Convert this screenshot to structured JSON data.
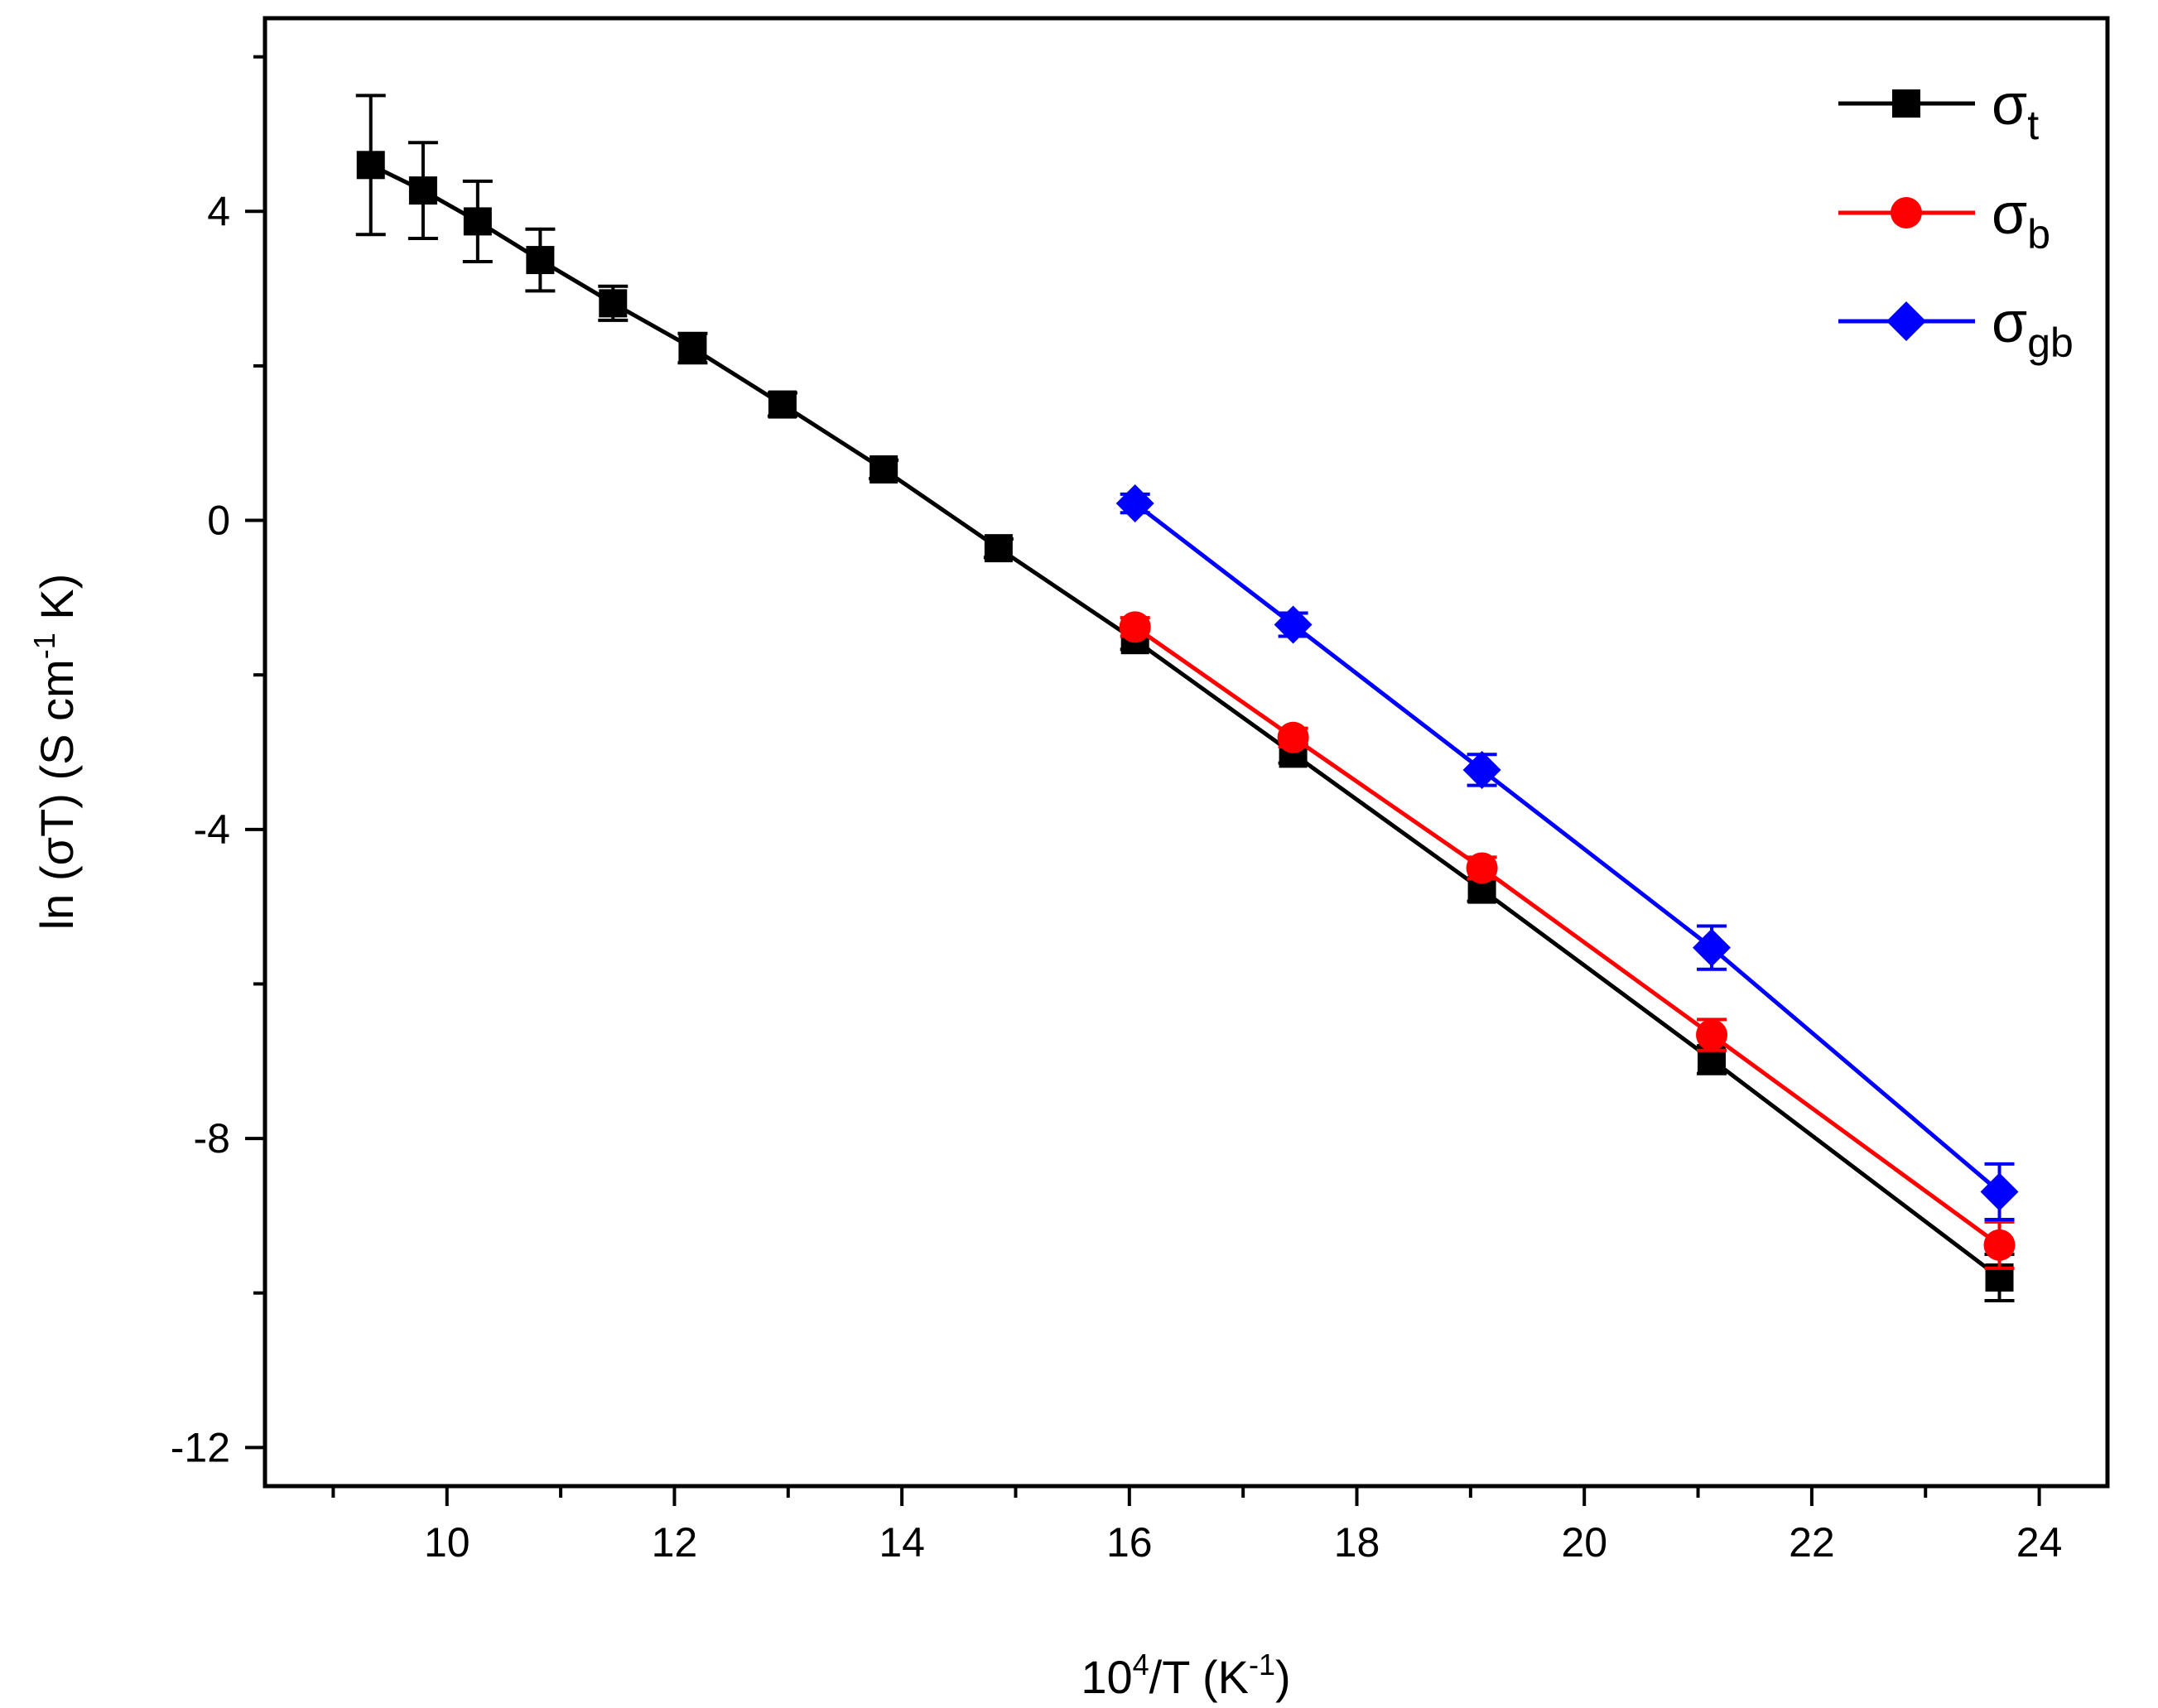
{
  "chart_data": {
    "type": "line",
    "title": "",
    "xlabel": {
      "base": "10",
      "base_sup": "4",
      "mid": "/T (K",
      "unit_sup": "-1",
      "end": ")"
    },
    "ylabel": {
      "main": "ln (σT) (S cm",
      "sup": "-1",
      "end": " K)"
    },
    "xlim": [
      8.4,
      24.6
    ],
    "ylim": [
      -12.5,
      6.5
    ],
    "xticks": [
      10,
      12,
      14,
      16,
      18,
      20,
      22,
      24
    ],
    "xticks_minor": [
      9,
      11,
      13,
      15,
      17,
      19,
      21,
      23
    ],
    "yticks": [
      4,
      0,
      -4,
      -8,
      -12
    ],
    "yticks_minor": [
      6,
      2,
      -2,
      -6,
      -10
    ],
    "ytick_labels": [
      "4",
      "0",
      "-4",
      "-8",
      "-12"
    ],
    "xtick_labels": [
      "10",
      "12",
      "14",
      "16",
      "18",
      "20",
      "22",
      "24"
    ],
    "grid": false,
    "legend_position": "top-right",
    "series": [
      {
        "name": "σt",
        "symbol": "σ",
        "sub": "t",
        "color": "#000000",
        "marker": "square",
        "x": [
          9.33,
          9.79,
          10.27,
          10.82,
          11.46,
          12.16,
          12.95,
          13.84,
          14.85,
          16.05,
          17.44,
          19.1,
          21.12,
          23.65
        ],
        "y": [
          4.6,
          4.27,
          3.87,
          3.37,
          2.81,
          2.23,
          1.5,
          0.66,
          -0.36,
          -1.55,
          -3.02,
          -4.78,
          -6.98,
          -9.8
        ],
        "err": [
          0.9,
          0.62,
          0.52,
          0.4,
          0.22,
          0.19,
          0.15,
          0.12,
          0.12,
          0.12,
          0.12,
          0.15,
          0.18,
          0.3
        ]
      },
      {
        "name": "σb",
        "symbol": "σ",
        "sub": "b",
        "color": "#ff0000",
        "marker": "circle",
        "x": [
          16.05,
          17.44,
          19.1,
          21.12,
          23.65
        ],
        "y": [
          -1.38,
          -2.81,
          -4.5,
          -6.66,
          -9.38
        ],
        "err": [
          0.12,
          0.12,
          0.14,
          0.2,
          0.3
        ]
      },
      {
        "name": "σgb",
        "symbol": "σ",
        "sub": "gb",
        "color": "#0000ff",
        "marker": "diamond",
        "x": [
          16.05,
          17.44,
          19.1,
          21.12,
          23.65
        ],
        "y": [
          0.22,
          -1.35,
          -3.23,
          -5.53,
          -8.69
        ],
        "err": [
          0.12,
          0.15,
          0.2,
          0.28,
          0.36
        ]
      }
    ]
  }
}
